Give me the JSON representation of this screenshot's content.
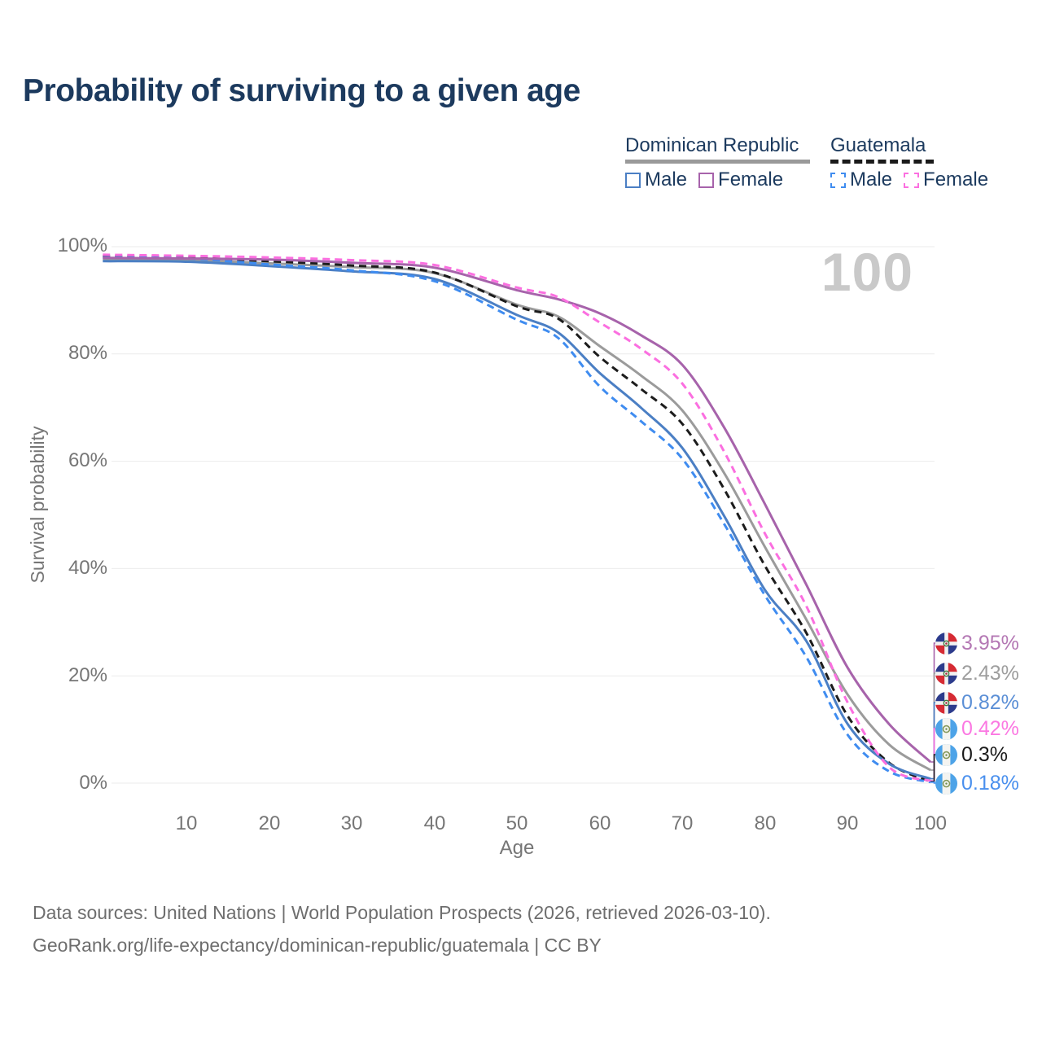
{
  "title": "Probability of surviving to a given age",
  "watermark": "100",
  "legend": {
    "groups": [
      {
        "label": "Dominican Republic",
        "line_style": "solid",
        "line_color": "#9a9a9a",
        "items": [
          {
            "label": "Male",
            "color": "#4b7fc4",
            "dashed": false
          },
          {
            "label": "Female",
            "color": "#a763ab",
            "dashed": false
          }
        ]
      },
      {
        "label": "Guatemala",
        "line_style": "dashed",
        "line_color": "#1a1a1a",
        "items": [
          {
            "label": "Male",
            "color": "#3f8cf0",
            "dashed": true
          },
          {
            "label": "Female",
            "color": "#fb6fe0",
            "dashed": true
          }
        ]
      }
    ]
  },
  "chart_data": {
    "type": "line",
    "title": "Probability of surviving to a given age",
    "xlabel": "Age",
    "ylabel": "Survival probability",
    "xlim": [
      0,
      100
    ],
    "ylim": [
      0,
      100
    ],
    "grid": "horizontal",
    "grid_color": "#ebebeb",
    "x_ticks": [
      10,
      20,
      30,
      40,
      50,
      60,
      70,
      80,
      90,
      100
    ],
    "x_tick_labels": [
      "10",
      "20",
      "30",
      "40",
      "50",
      "60",
      "70",
      "80",
      "90",
      "100"
    ],
    "y_ticks": [
      0,
      20,
      40,
      60,
      80,
      100
    ],
    "y_tick_labels": [
      "100%",
      "80%",
      "60%",
      "40%",
      "20%",
      "0%"
    ],
    "x": [
      0,
      10,
      20,
      30,
      40,
      50,
      55,
      60,
      65,
      70,
      75,
      80,
      85,
      90,
      95,
      100
    ],
    "series": [
      {
        "name": "Dominican Republic Male",
        "country": "Dominican Republic",
        "sex": "Male",
        "color": "#4b7fc4",
        "label_color": "#5b8fd6",
        "dashed": false,
        "end_label": "0.82%",
        "values": [
          97.3,
          97.2,
          96.4,
          95.4,
          94.0,
          87.3,
          84.0,
          76.5,
          70.0,
          62.5,
          50.0,
          36.0,
          26.5,
          11.0,
          3.6,
          0.82
        ]
      },
      {
        "name": "Dominican Republic Female",
        "country": "Dominican Republic",
        "sex": "Female",
        "color": "#a763ab",
        "label_color": "#b478b4",
        "dashed": false,
        "end_label": "3.95%",
        "values": [
          97.9,
          97.8,
          97.6,
          97.0,
          96.1,
          91.9,
          90.2,
          87.6,
          83.5,
          78.0,
          66.5,
          52.0,
          37.0,
          21.5,
          11.0,
          3.95
        ]
      },
      {
        "name": "Dominican Republic Total",
        "country": "Dominican Republic",
        "sex": "Total",
        "color": "#9b9b9b",
        "label_color": "#9e9e9e",
        "dashed": false,
        "end_label": "2.43%",
        "values": [
          97.6,
          97.5,
          96.9,
          96.2,
          95.1,
          89.2,
          87.0,
          81.5,
          76.0,
          69.5,
          58.0,
          44.0,
          30.5,
          16.5,
          7.2,
          2.43
        ]
      },
      {
        "name": "Guatemala Male",
        "country": "Guatemala",
        "sex": "Male",
        "color": "#3f8cf0",
        "label_color": "#4a90ee",
        "dashed": true,
        "end_label": "0.18%",
        "values": [
          98.0,
          97.8,
          96.7,
          95.6,
          93.6,
          86.4,
          83.0,
          74.0,
          67.5,
          60.5,
          48.5,
          35.0,
          23.5,
          9.0,
          2.2,
          0.18
        ]
      },
      {
        "name": "Guatemala Female",
        "country": "Guatemala",
        "sex": "Female",
        "color": "#fb6fe0",
        "label_color": "#fb78e2",
        "dashed": true,
        "end_label": "0.42%",
        "values": [
          98.5,
          98.3,
          98.0,
          97.5,
          96.6,
          92.4,
          90.6,
          85.9,
          81.0,
          74.5,
          62.0,
          46.5,
          33.0,
          15.0,
          3.0,
          0.42
        ]
      },
      {
        "name": "Guatemala Total",
        "country": "Guatemala",
        "sex": "Total",
        "color": "#1c1c1c",
        "label_color": "#1a1a1a",
        "dashed": true,
        "end_label": "0.3%",
        "values": [
          98.2,
          98.0,
          97.3,
          96.5,
          95.2,
          88.9,
          86.6,
          79.5,
          73.5,
          67.0,
          55.0,
          40.5,
          28.0,
          12.5,
          3.8,
          0.3
        ]
      }
    ]
  },
  "footer": {
    "line1": "Data sources: United Nations | World Population Prospects (2026, retrieved 2026-03-10).",
    "line2": "GeoRank.org/life-expectancy/dominican-republic/guatemala | CC BY"
  }
}
